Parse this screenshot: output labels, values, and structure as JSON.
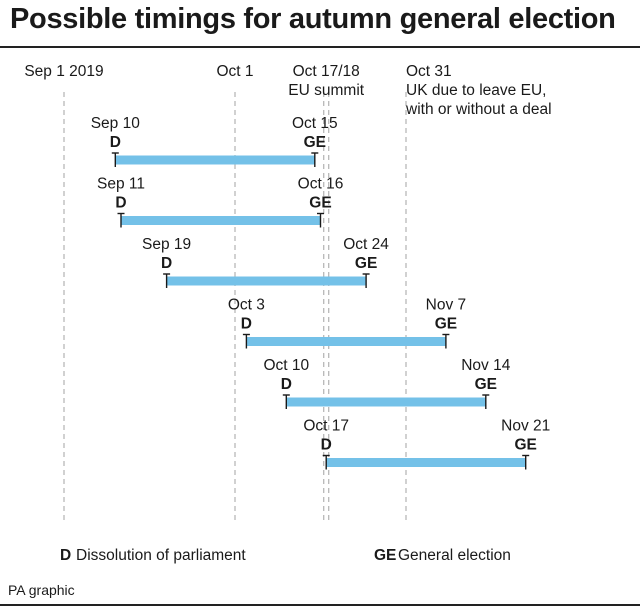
{
  "title": "Possible timings for autumn general election",
  "reference_lines": [
    {
      "date": "2019-09-01",
      "label": [
        "Sep 1 2019"
      ],
      "anchor": "middle"
    },
    {
      "date": "2019-10-01",
      "label": [
        "Oct 1"
      ],
      "anchor": "middle"
    },
    {
      "date": "2019-10-17",
      "label": [
        "Oct 17/18",
        "EU summit"
      ],
      "anchor": "middle",
      "double": true
    },
    {
      "date": "2019-10-31",
      "label": [
        "Oct 31",
        "UK due to leave EU,",
        "with or without a deal"
      ],
      "anchor": "start"
    }
  ],
  "timelines": [
    {
      "dissolution": "2019-09-10",
      "d_label": "Sep 10",
      "election": "2019-10-15",
      "ge_label": "Oct 15"
    },
    {
      "dissolution": "2019-09-11",
      "d_label": "Sep 11",
      "election": "2019-10-16",
      "ge_label": "Oct 16"
    },
    {
      "dissolution": "2019-09-19",
      "d_label": "Sep 19",
      "election": "2019-10-24",
      "ge_label": "Oct 24"
    },
    {
      "dissolution": "2019-10-03",
      "d_label": "Oct 3",
      "election": "2019-11-07",
      "ge_label": "Nov 7"
    },
    {
      "dissolution": "2019-10-10",
      "d_label": "Oct 10",
      "election": "2019-11-14",
      "ge_label": "Nov 14"
    },
    {
      "dissolution": "2019-10-17",
      "d_label": "Oct 17",
      "election": "2019-11-21",
      "ge_label": "Nov 21"
    }
  ],
  "marker_labels": {
    "dissolution": "D",
    "election": "GE"
  },
  "legend": {
    "d_key": "D",
    "d_text": "Dissolution of parliament",
    "ge_key": "GE",
    "ge_text": "General election"
  },
  "credit": "PA graphic",
  "colors": {
    "bar": "#74c1e8",
    "guide": "#b8b8b8",
    "text": "#1a1a1a"
  }
}
